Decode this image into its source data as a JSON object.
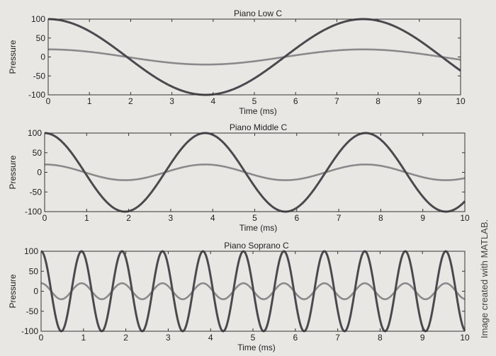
{
  "credit": "Image created with MATLAB.",
  "colors": {
    "loud": "#4a4a4e",
    "quiet": "#8a8a8c",
    "axes": "#333333",
    "background": "#e9e7e3"
  },
  "chart_data": [
    {
      "type": "line",
      "title": "Piano Low C",
      "xlabel": "Time (ms)",
      "ylabel": "Pressure",
      "xlim": [
        0,
        10
      ],
      "ylim": [
        -100,
        100
      ],
      "xticks": [
        "0",
        "1",
        "2",
        "3",
        "4",
        "5",
        "6",
        "7",
        "8",
        "9",
        "10"
      ],
      "yticks": [
        "100",
        "50",
        "0",
        "-50",
        "-100"
      ],
      "grid": false,
      "series": [
        {
          "amplitude": 100,
          "period_ms": 7.64,
          "phase_ms": 0,
          "color": "#4a4a4e"
        },
        {
          "amplitude": 20,
          "period_ms": 7.64,
          "phase_ms": 0,
          "color": "#8a8a8c"
        }
      ]
    },
    {
      "type": "line",
      "title": "Piano Middle C",
      "xlabel": "Time (ms)",
      "ylabel": "Pressure",
      "xlim": [
        0,
        10
      ],
      "ylim": [
        -100,
        100
      ],
      "xticks": [
        "0",
        "1",
        "2",
        "3",
        "4",
        "5",
        "6",
        "7",
        "8",
        "9",
        "10"
      ],
      "yticks": [
        "100",
        "50",
        "0",
        "-50",
        "-100"
      ],
      "grid": false,
      "series": [
        {
          "amplitude": 100,
          "period_ms": 3.82,
          "phase_ms": 0,
          "color": "#4a4a4e"
        },
        {
          "amplitude": 20,
          "period_ms": 3.82,
          "phase_ms": 0,
          "color": "#8a8a8c"
        }
      ]
    },
    {
      "type": "line",
      "title": "Piano Soprano C",
      "xlabel": "Time (ms)",
      "ylabel": "Pressure",
      "xlim": [
        0,
        10
      ],
      "ylim": [
        -100,
        100
      ],
      "xticks": [
        "0",
        "1",
        "2",
        "3",
        "4",
        "5",
        "6",
        "7",
        "8",
        "9",
        "10"
      ],
      "yticks": [
        "100",
        "50",
        "0",
        "-50",
        "-100"
      ],
      "grid": false,
      "series": [
        {
          "amplitude": 100,
          "period_ms": 0.955,
          "phase_ms": 0,
          "color": "#4a4a4e"
        },
        {
          "amplitude": 20,
          "period_ms": 0.955,
          "phase_ms": 0,
          "color": "#8a8a8c"
        }
      ]
    }
  ]
}
